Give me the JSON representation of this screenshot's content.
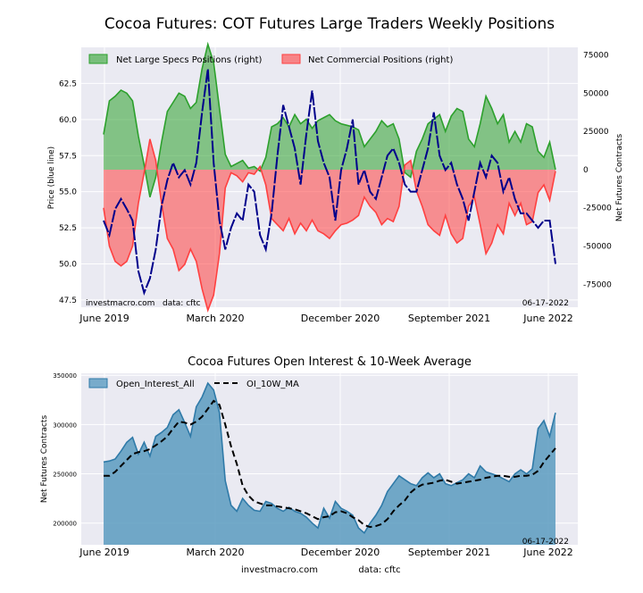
{
  "figure": {
    "footer_site": "investmacro.com",
    "footer_data": "data: cftc"
  },
  "chart_data": [
    {
      "type": "area",
      "title": "Cocoa Futures: COT Futures Large Traders Weekly Positions",
      "ylabel_left": "Price (blue line)",
      "ylabel_right": "Net Futures Contracts",
      "x_ticks": [
        "June 2019",
        "March 2020",
        "December 2020",
        "September 2021",
        "June 2022"
      ],
      "left_ticks": [
        "47.5",
        "50.0",
        "52.5",
        "55.0",
        "57.5",
        "60.0",
        "62.5"
      ],
      "right_ticks": [
        "-75000",
        "-50000",
        "-25000",
        "0",
        "25000",
        "50000",
        "75000"
      ],
      "ylim_left": [
        47.0,
        65.0
      ],
      "ylim_right": [
        -90000,
        80000
      ],
      "legend_placement": "top-left",
      "annotation_left": "investmacro.com   data: cftc",
      "annotation_right": "06-17-2022",
      "series": [
        {
          "name": "Net Large Specs Positions (right)",
          "color": "#2ca02c",
          "x": [
            0,
            2,
            4,
            6,
            8,
            10,
            12,
            14,
            16,
            18,
            20,
            22,
            24,
            26,
            28,
            30,
            32,
            34,
            36,
            38,
            40,
            42,
            44,
            46,
            48,
            50,
            52,
            54,
            56,
            58,
            60,
            62,
            64,
            66,
            68,
            70,
            72,
            74,
            76,
            78,
            80,
            82,
            84,
            86,
            88,
            90,
            92,
            94,
            96,
            98,
            100,
            102,
            104,
            106,
            108,
            110,
            112,
            114,
            116,
            118,
            120,
            122,
            124,
            126,
            128,
            130,
            132,
            134,
            136,
            138,
            140,
            142,
            144,
            146,
            148,
            150,
            152,
            154,
            156
          ],
          "values": [
            23000,
            45000,
            48000,
            52000,
            50000,
            45000,
            22000,
            3000,
            -18000,
            -5000,
            18000,
            38000,
            44000,
            50000,
            48000,
            40000,
            44000,
            66000,
            82000,
            70000,
            40000,
            10000,
            2000,
            4000,
            6000,
            1000,
            2000,
            -1000,
            8000,
            28000,
            30000,
            34000,
            28000,
            36000,
            30000,
            33000,
            27000,
            32000,
            34000,
            36000,
            32000,
            30000,
            29000,
            28000,
            26000,
            15000,
            20000,
            25000,
            32000,
            28000,
            30000,
            20000,
            -2000,
            -5000,
            12000,
            20000,
            30000,
            33000,
            36000,
            25000,
            35000,
            40000,
            38000,
            20000,
            15000,
            30000,
            48000,
            40000,
            30000,
            36000,
            18000,
            25000,
            18000,
            30000,
            28000,
            12000,
            8000,
            18000,
            0
          ]
        },
        {
          "name": "Net Commercial Positions (right)",
          "color": "#ff4040",
          "x": [
            0,
            2,
            4,
            6,
            8,
            10,
            12,
            14,
            16,
            18,
            20,
            22,
            24,
            26,
            28,
            30,
            32,
            34,
            36,
            38,
            40,
            42,
            44,
            46,
            48,
            50,
            52,
            54,
            56,
            58,
            60,
            62,
            64,
            66,
            68,
            70,
            72,
            74,
            76,
            78,
            80,
            82,
            84,
            86,
            88,
            90,
            92,
            94,
            96,
            98,
            100,
            102,
            104,
            106,
            108,
            110,
            112,
            114,
            116,
            118,
            120,
            122,
            124,
            126,
            128,
            130,
            132,
            134,
            136,
            138,
            140,
            142,
            144,
            146,
            148,
            150,
            152,
            154,
            156
          ],
          "values": [
            -25000,
            -50000,
            -60000,
            -63000,
            -60000,
            -50000,
            -22000,
            -2000,
            20000,
            6000,
            -22000,
            -45000,
            -52000,
            -66000,
            -62000,
            -52000,
            -60000,
            -78000,
            -92000,
            -82000,
            -55000,
            -12000,
            -2000,
            -4000,
            -8000,
            -2000,
            -3000,
            2000,
            -10000,
            -32000,
            -36000,
            -40000,
            -32000,
            -42000,
            -35000,
            -40000,
            -33000,
            -40000,
            -42000,
            -45000,
            -40000,
            -36000,
            -35000,
            -33000,
            -30000,
            -18000,
            -24000,
            -28000,
            -36000,
            -32000,
            -34000,
            -24000,
            3000,
            6000,
            -14000,
            -24000,
            -36000,
            -40000,
            -43000,
            -30000,
            -42000,
            -48000,
            -45000,
            -24000,
            -18000,
            -36000,
            -55000,
            -48000,
            -36000,
            -42000,
            -22000,
            -30000,
            -22000,
            -36000,
            -34000,
            -15000,
            -10000,
            -20000,
            -1000
          ]
        },
        {
          "name": "Price (blue line)",
          "axis": "left",
          "color": "#00008b",
          "x": [
            0,
            2,
            4,
            6,
            8,
            10,
            12,
            14,
            16,
            18,
            20,
            22,
            24,
            26,
            28,
            30,
            32,
            34,
            36,
            38,
            40,
            42,
            44,
            46,
            48,
            50,
            52,
            54,
            56,
            58,
            60,
            62,
            64,
            66,
            68,
            70,
            72,
            74,
            76,
            78,
            80,
            82,
            84,
            86,
            88,
            90,
            92,
            94,
            96,
            98,
            100,
            102,
            104,
            106,
            108,
            110,
            112,
            114,
            116,
            118,
            120,
            122,
            124,
            126,
            128,
            130,
            132,
            134,
            136,
            138,
            140,
            142,
            144,
            146,
            148,
            150,
            152,
            154,
            156
          ],
          "values": [
            53.0,
            52.0,
            53.8,
            54.5,
            53.8,
            53.0,
            49.5,
            48.0,
            49.0,
            51.0,
            54.0,
            55.8,
            57.0,
            56.0,
            56.5,
            55.5,
            57.0,
            60.5,
            63.5,
            57.0,
            53.0,
            51.0,
            52.5,
            53.5,
            53.0,
            55.5,
            55.0,
            52.0,
            51.0,
            53.5,
            57.5,
            61.0,
            59.5,
            58.0,
            55.5,
            59.0,
            62.0,
            58.5,
            57.0,
            56.0,
            53.0,
            56.5,
            58.0,
            60.0,
            55.5,
            56.5,
            55.0,
            54.5,
            56.0,
            57.5,
            58.0,
            57.0,
            55.5,
            55.0,
            55.0,
            56.5,
            58.0,
            60.5,
            57.5,
            56.5,
            57.0,
            55.5,
            54.5,
            53.0,
            55.0,
            57.0,
            56.0,
            57.5,
            57.0,
            55.0,
            56.0,
            54.5,
            53.5,
            53.5,
            53.0,
            52.5,
            53.0,
            53.0,
            50.0
          ]
        }
      ]
    },
    {
      "type": "area",
      "title": "Cocoa Futures Open Interest & 10-Week Average",
      "ylabel": "Net Futures Contracts",
      "x_ticks": [
        "June 2019",
        "March 2020",
        "December 2020",
        "September 2021",
        "June 2022"
      ],
      "y_ticks": [
        "200000",
        "250000",
        "300000",
        "350000"
      ],
      "ylim": [
        178000,
        352000
      ],
      "legend_placement": "top-left",
      "annotation_right": "06-17-2022",
      "series": [
        {
          "name": "Open_Interest_All",
          "color": "#5b9bc0",
          "x": [
            0,
            2,
            4,
            6,
            8,
            10,
            12,
            14,
            16,
            18,
            20,
            22,
            24,
            26,
            28,
            30,
            32,
            34,
            36,
            38,
            40,
            42,
            44,
            46,
            48,
            50,
            52,
            54,
            56,
            58,
            60,
            62,
            64,
            66,
            68,
            70,
            72,
            74,
            76,
            78,
            80,
            82,
            84,
            86,
            88,
            90,
            92,
            94,
            96,
            98,
            100,
            102,
            104,
            106,
            108,
            110,
            112,
            114,
            116,
            118,
            120,
            122,
            124,
            126,
            128,
            130,
            132,
            134,
            136,
            138,
            140,
            142,
            144,
            146,
            148,
            150,
            152,
            154,
            156
          ],
          "values": [
            262000,
            263000,
            265000,
            273000,
            282000,
            287000,
            270000,
            282000,
            268000,
            288000,
            292000,
            297000,
            310000,
            315000,
            302000,
            288000,
            318000,
            328000,
            342000,
            335000,
            312000,
            243000,
            218000,
            212000,
            225000,
            218000,
            213000,
            212000,
            222000,
            220000,
            215000,
            212000,
            216000,
            212000,
            210000,
            206000,
            200000,
            195000,
            215000,
            205000,
            222000,
            215000,
            212000,
            208000,
            195000,
            190000,
            200000,
            208000,
            218000,
            232000,
            240000,
            248000,
            244000,
            240000,
            238000,
            246000,
            251000,
            246000,
            250000,
            240000,
            238000,
            241000,
            244000,
            250000,
            246000,
            258000,
            252000,
            250000,
            248000,
            245000,
            242000,
            250000,
            254000,
            250000,
            255000,
            296000,
            304000,
            288000,
            312000
          ]
        },
        {
          "name": "OI_10W_MA",
          "color": "#000000",
          "x": [
            0,
            2,
            4,
            6,
            8,
            10,
            12,
            14,
            16,
            18,
            20,
            22,
            24,
            26,
            28,
            30,
            32,
            34,
            36,
            38,
            40,
            42,
            44,
            46,
            48,
            50,
            52,
            54,
            56,
            58,
            60,
            62,
            64,
            66,
            68,
            70,
            72,
            74,
            76,
            78,
            80,
            82,
            84,
            86,
            88,
            90,
            92,
            94,
            96,
            98,
            100,
            102,
            104,
            106,
            108,
            110,
            112,
            114,
            116,
            118,
            120,
            122,
            124,
            126,
            128,
            130,
            132,
            134,
            136,
            138,
            140,
            142,
            144,
            146,
            148,
            150,
            152,
            154,
            156
          ],
          "values": [
            248000,
            248000,
            252000,
            258000,
            264000,
            270000,
            272000,
            273000,
            275000,
            279000,
            283000,
            288000,
            296000,
            303000,
            302000,
            300000,
            303000,
            308000,
            316000,
            324000,
            320000,
            300000,
            278000,
            260000,
            238000,
            228000,
            222000,
            220000,
            218000,
            218000,
            217000,
            216000,
            215000,
            214000,
            212000,
            210000,
            207000,
            204000,
            206000,
            207000,
            211000,
            212000,
            210000,
            206000,
            203000,
            198000,
            196000,
            197000,
            199000,
            204000,
            212000,
            218000,
            223000,
            231000,
            236000,
            239000,
            240000,
            241000,
            243000,
            244000,
            242000,
            240000,
            241000,
            242000,
            243000,
            244000,
            246000,
            247000,
            248000,
            248000,
            247000,
            247000,
            248000,
            248000,
            249000,
            253000,
            262000,
            269000,
            276000
          ]
        }
      ]
    }
  ]
}
